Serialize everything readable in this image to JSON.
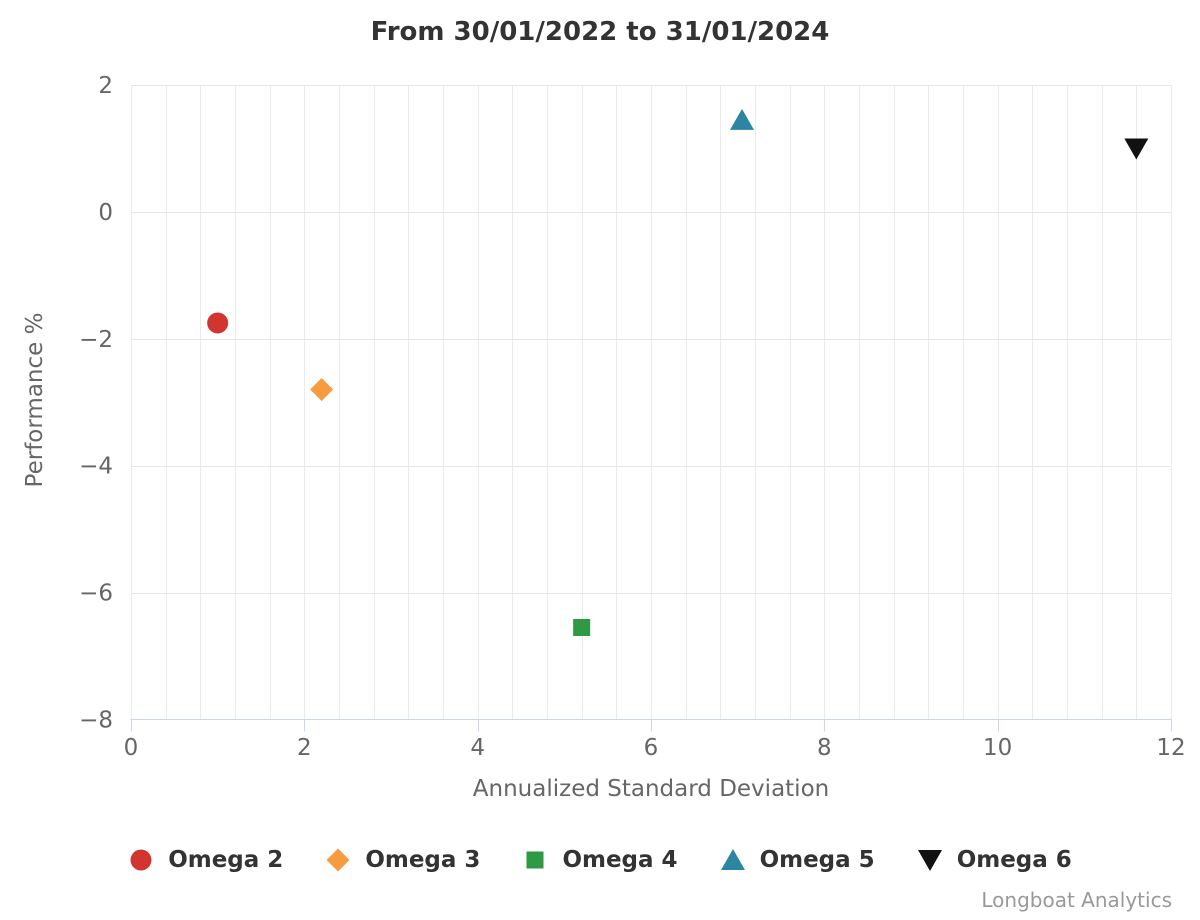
{
  "chart_data": {
    "type": "scatter",
    "title": "From 30/01/2022 to 31/01/2024",
    "xlabel": "Annualized Standard Deviation",
    "ylabel": "Performance %",
    "xlim": [
      0,
      12
    ],
    "ylim": [
      -8,
      2
    ],
    "x_ticks": [
      0,
      2,
      4,
      6,
      8,
      10,
      12
    ],
    "y_ticks": [
      2,
      0,
      -2,
      -4,
      -6,
      -8
    ],
    "x_minor_step": 0.4,
    "grid": true,
    "legend_position": "bottom",
    "credits": "Longboat Analytics",
    "series": [
      {
        "name": "Omega 2",
        "marker": "circle",
        "color": "#d2342f",
        "points": [
          {
            "x": 1.0,
            "y": -1.75
          }
        ]
      },
      {
        "name": "Omega 3",
        "marker": "diamond",
        "color": "#f69b40",
        "points": [
          {
            "x": 2.2,
            "y": -2.8
          }
        ]
      },
      {
        "name": "Omega 4",
        "marker": "square",
        "color": "#2f9a43",
        "points": [
          {
            "x": 5.2,
            "y": -6.55
          }
        ]
      },
      {
        "name": "Omega 5",
        "marker": "triangle-up",
        "color": "#2c86a2",
        "points": [
          {
            "x": 7.05,
            "y": 1.45
          }
        ]
      },
      {
        "name": "Omega 6",
        "marker": "triangle-down",
        "color": "#111111",
        "points": [
          {
            "x": 11.6,
            "y": 1.0
          }
        ]
      }
    ],
    "style": {
      "title_color": "#333333",
      "axis_label_color": "#666666",
      "axis_title_color": "#666666",
      "legend_text_color": "#333333",
      "credits_color": "#999999",
      "grid_color": "#e6e6e6",
      "minor_grid_color": "#ebebeb",
      "axis_line_color": "#ccd6eb"
    }
  }
}
